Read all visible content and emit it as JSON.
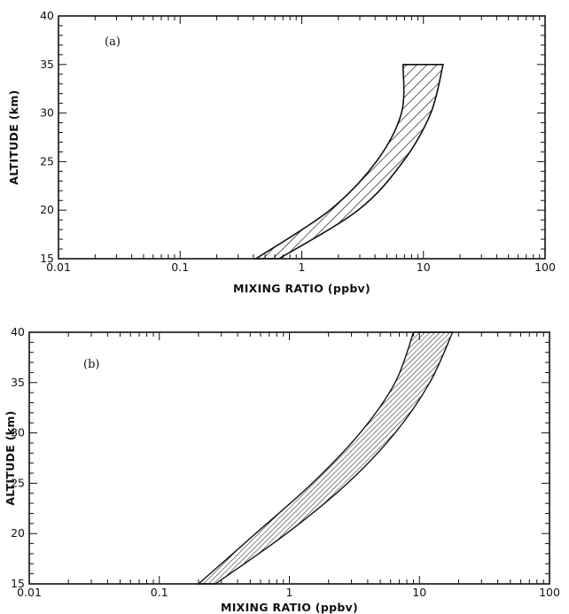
{
  "chart_data": [
    {
      "type": "area",
      "panel_label": "(a)",
      "xlabel": "MIXING RATIO (ppbv)",
      "ylabel": "ALTITUDE (km)",
      "xscale": "log",
      "xlim": [
        0.01,
        100
      ],
      "ylim": [
        15,
        40
      ],
      "x_tick_labels": [
        "0.01",
        "0.1",
        "1",
        "10",
        "100"
      ],
      "y_tick_labels": [
        "15",
        "20",
        "25",
        "30",
        "35",
        "40"
      ],
      "fill": "hatched",
      "band": {
        "altitude": [
          15,
          20,
          25,
          30,
          35
        ],
        "lower": [
          0.42,
          1.7,
          4.1,
          6.6,
          6.8
        ],
        "upper": [
          0.65,
          2.9,
          6.8,
          11.5,
          14.5
        ]
      }
    },
    {
      "type": "area",
      "panel_label": "(b)",
      "xlabel": "MIXING RATIO (ppbv)",
      "ylabel": "ALTITUDE (km)",
      "xscale": "log",
      "xlim": [
        0.01,
        100
      ],
      "ylim": [
        15,
        40
      ],
      "x_tick_labels": [
        "0.01",
        "0.1",
        "1",
        "10",
        "100"
      ],
      "y_tick_labels": [
        "15",
        "20",
        "25",
        "30",
        "35",
        "40"
      ],
      "fill": "hatched",
      "band": {
        "altitude": [
          15,
          20,
          25,
          30,
          35,
          40
        ],
        "lower": [
          0.2,
          0.55,
          1.5,
          3.5,
          6.5,
          9.0
        ],
        "upper": [
          0.27,
          0.95,
          2.8,
          6.5,
          12.0,
          18.0
        ]
      }
    }
  ]
}
